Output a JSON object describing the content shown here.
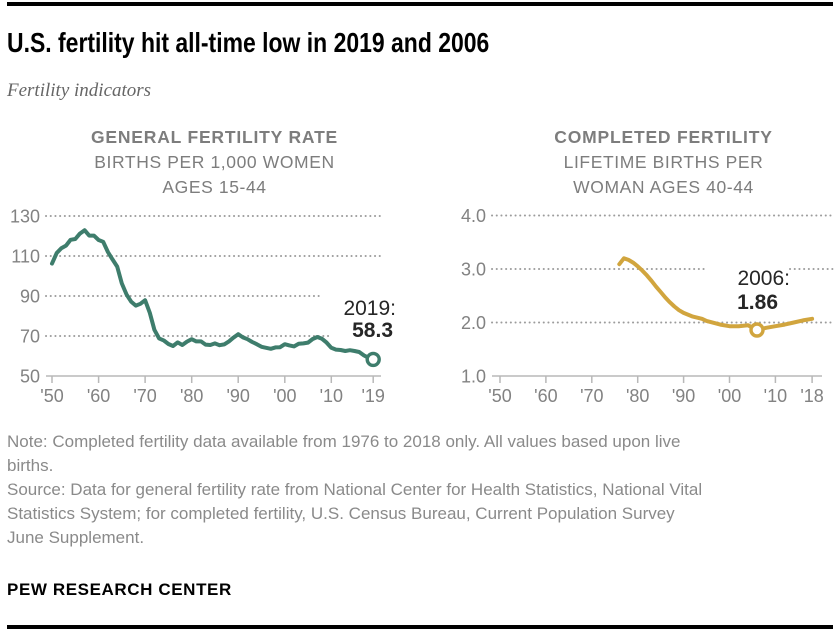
{
  "header": {
    "title": "U.S. fertility hit all-time low in 2019 and 2006",
    "subtitle": "Fertility indicators"
  },
  "footer": {
    "note_lines": [
      "Note: Completed fertility data available from 1976 to 2018 only. All values based upon live",
      "births."
    ],
    "source_lines": [
      "Source: Data for general fertility rate from National Center for Health Statistics, National Vital",
      "Statistics System; for completed fertility, U.S. Census Bureau, Current Population Survey",
      "June Supplement."
    ],
    "brand": "PEW RESEARCH CENTER"
  },
  "colors": {
    "teal_line": "#3e7d6c",
    "gold_line": "#d1a53e",
    "annotation_text": "#262626",
    "axis_label_gray": "#828282",
    "gridline_gray": "#9c9c9c",
    "header_gray": "#7d7d7d",
    "note_gray": "#8a8a8a"
  },
  "chart_data": [
    {
      "id": "general_fertility_rate",
      "type": "line",
      "title_lines": [
        "GENERAL FERTILITY RATE",
        "BIRTHS PER 1,000 WOMEN",
        "AGES 15-44"
      ],
      "color": "#3e7d6c",
      "grid": "dotted-horizontal",
      "legend": "none",
      "ylim": [
        50,
        130
      ],
      "yticks": [
        130,
        110,
        90,
        70,
        50
      ],
      "ytick_labels": [
        "130",
        "110",
        "90",
        "70",
        "50"
      ],
      "xticks": [
        1950,
        1960,
        1970,
        1980,
        1990,
        2000,
        2010,
        2019
      ],
      "xtick_labels": [
        "'50",
        "'60",
        "'70",
        "'80",
        "'90",
        "'00",
        "'10",
        "'19"
      ],
      "x": [
        1950,
        1951,
        1952,
        1953,
        1954,
        1955,
        1956,
        1957,
        1958,
        1959,
        1960,
        1961,
        1962,
        1963,
        1964,
        1965,
        1966,
        1967,
        1968,
        1969,
        1970,
        1971,
        1972,
        1973,
        1974,
        1975,
        1976,
        1977,
        1978,
        1979,
        1980,
        1981,
        1982,
        1983,
        1984,
        1985,
        1986,
        1987,
        1988,
        1989,
        1990,
        1991,
        1992,
        1993,
        1994,
        1995,
        1996,
        1997,
        1998,
        1999,
        2000,
        2001,
        2002,
        2003,
        2004,
        2005,
        2006,
        2007,
        2008,
        2009,
        2010,
        2011,
        2012,
        2013,
        2014,
        2015,
        2016,
        2017,
        2018,
        2019
      ],
      "values": [
        106.2,
        111.5,
        113.9,
        115.2,
        118.1,
        118.5,
        121.2,
        122.9,
        120.2,
        120.2,
        118.0,
        117.1,
        112.0,
        108.3,
        104.7,
        96.3,
        90.8,
        87.2,
        85.2,
        86.1,
        87.9,
        81.6,
        73.1,
        68.8,
        67.8,
        66.0,
        65.0,
        66.8,
        65.5,
        67.2,
        68.4,
        67.3,
        67.3,
        65.7,
        65.5,
        66.3,
        65.4,
        65.8,
        67.3,
        69.2,
        70.9,
        69.3,
        68.4,
        67.0,
        65.9,
        64.6,
        64.1,
        63.6,
        64.3,
        64.4,
        65.9,
        65.3,
        64.8,
        66.1,
        66.3,
        66.7,
        68.5,
        69.5,
        68.6,
        66.7,
        64.1,
        63.2,
        63.0,
        62.5,
        62.9,
        62.5,
        62.0,
        60.3,
        59.1,
        58.3
      ],
      "highlight": {
        "year": 2019,
        "value": 58.3
      },
      "annotation": {
        "label": "2019:",
        "value": "58.3"
      }
    },
    {
      "id": "completed_fertility",
      "type": "line",
      "title_lines": [
        "COMPLETED FERTILITY",
        "LIFETIME BIRTHS PER",
        "WOMAN AGES 40-44"
      ],
      "color": "#d1a53e",
      "grid": "dotted-horizontal",
      "legend": "none",
      "ylim": [
        1.0,
        4.0
      ],
      "yticks": [
        4,
        3,
        2,
        1
      ],
      "ytick_labels": [
        "4.0",
        "3.0",
        "2.0",
        "1.0"
      ],
      "xticks": [
        1950,
        1960,
        1970,
        1980,
        1990,
        2000,
        2010,
        2018
      ],
      "xtick_labels": [
        "'50",
        "'60",
        "'70",
        "'80",
        "'90",
        "'00",
        "'10",
        "'18"
      ],
      "x": [
        1976,
        1977,
        1978,
        1979,
        1980,
        1981,
        1982,
        1983,
        1984,
        1985,
        1986,
        1987,
        1988,
        1989,
        1990,
        1992,
        1994,
        1995,
        1998,
        2000,
        2002,
        2004,
        2006,
        2008,
        2010,
        2012,
        2014,
        2016,
        2018
      ],
      "values": [
        3.09,
        3.2,
        3.17,
        3.12,
        3.05,
        2.97,
        2.88,
        2.78,
        2.67,
        2.57,
        2.47,
        2.38,
        2.3,
        2.23,
        2.18,
        2.11,
        2.07,
        2.03,
        1.96,
        1.93,
        1.93,
        1.95,
        1.86,
        1.9,
        1.93,
        1.96,
        2.0,
        2.04,
        2.07
      ],
      "highlight": {
        "year": 2006,
        "value": 1.86
      },
      "annotation": {
        "label": "2006:",
        "value": "1.86"
      }
    }
  ]
}
